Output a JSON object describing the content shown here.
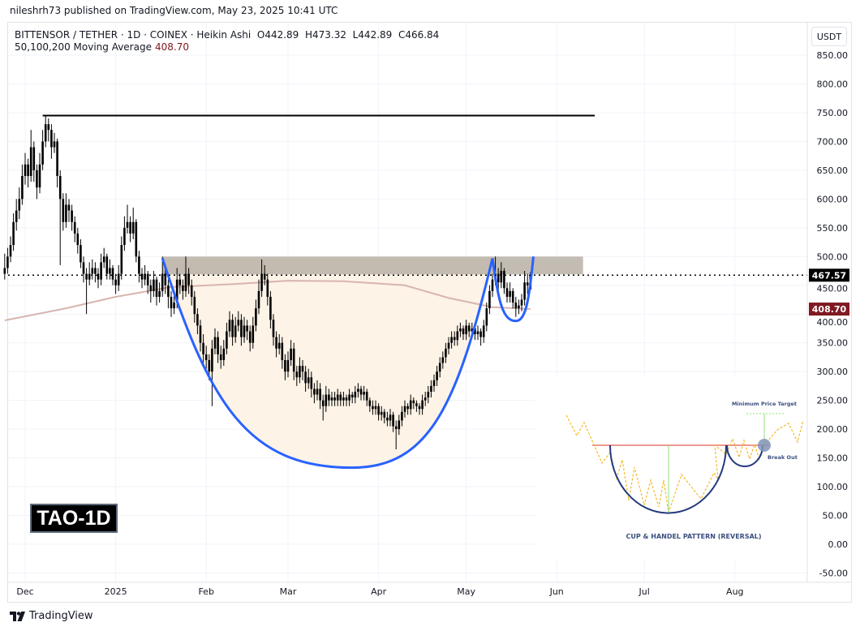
{
  "header": {
    "published": "nileshrh73 published on TradingView.com, May 23, 2025 10:41 UTC",
    "symbol_line": "BITTENSOR / TETHER · 1D · COINEX · Heikin Ashi",
    "ohlc": {
      "open": "O442.89",
      "high": "H473.32",
      "low": "L442.89",
      "close": "C466.84"
    },
    "indicator_label": "50,100,200 Moving Average",
    "indicator_value": "408.70"
  },
  "currency_button": "USDT",
  "watermark_label": "TAO-1D",
  "footer_logo": "TradingView",
  "colors": {
    "candle": "#000000",
    "ma": "#d8b4b0",
    "cup_line": "#2962ff",
    "cup_fill": "#fdf3e7",
    "zone": "#b8b0a6",
    "last_price_badge": "#000000",
    "ma_badge": "#801922"
  },
  "chart_data": {
    "type": "candlestick",
    "title": "",
    "y_axis": {
      "min": -50,
      "max": 850,
      "step": 50,
      "ticks": [
        "850.00",
        "800.00",
        "750.00",
        "700.00",
        "650.00",
        "600.00",
        "550.00",
        "500.00",
        "450.00",
        "400.00",
        "350.00",
        "300.00",
        "250.00",
        "200.00",
        "150.00",
        "100.00",
        "50.00",
        "0.00",
        "-50.00"
      ]
    },
    "x_axis": {
      "ticks": [
        {
          "label": "Dec",
          "date": "2024-12-01"
        },
        {
          "label": "2025",
          "date": "2025-01-01"
        },
        {
          "label": "Feb",
          "date": "2025-02-01"
        },
        {
          "label": "Mar",
          "date": "2025-03-01"
        },
        {
          "label": "Apr",
          "date": "2025-04-01"
        },
        {
          "label": "May",
          "date": "2025-05-01"
        },
        {
          "label": "Jun",
          "date": "2025-06-01"
        },
        {
          "label": "Jul",
          "date": "2025-07-01"
        },
        {
          "label": "Aug",
          "date": "2025-08-01"
        }
      ]
    },
    "grid": true,
    "last_price": "467.57",
    "ma_last": "408.70",
    "candles_ohlc": [
      [
        "2024-11-24",
        470,
        505,
        460,
        480
      ],
      [
        "2024-11-25",
        480,
        515,
        470,
        500
      ],
      [
        "2024-11-26",
        500,
        535,
        490,
        520
      ],
      [
        "2024-11-27",
        520,
        575,
        510,
        560
      ],
      [
        "2024-11-28",
        560,
        600,
        545,
        580
      ],
      [
        "2024-11-29",
        580,
        620,
        565,
        600
      ],
      [
        "2024-11-30",
        600,
        660,
        590,
        640
      ],
      [
        "2024-12-01",
        640,
        680,
        625,
        660
      ],
      [
        "2024-12-02",
        660,
        670,
        620,
        640
      ],
      [
        "2024-12-03",
        640,
        720,
        630,
        690
      ],
      [
        "2024-12-04",
        690,
        700,
        630,
        650
      ],
      [
        "2024-12-05",
        650,
        660,
        600,
        620
      ],
      [
        "2024-12-06",
        620,
        680,
        610,
        660
      ],
      [
        "2024-12-07",
        660,
        720,
        650,
        700
      ],
      [
        "2024-12-08",
        700,
        745,
        690,
        730
      ],
      [
        "2024-12-09",
        730,
        740,
        700,
        720
      ],
      [
        "2024-12-10",
        720,
        730,
        670,
        690
      ],
      [
        "2024-12-11",
        690,
        715,
        680,
        700
      ],
      [
        "2024-12-12",
        700,
        705,
        620,
        640
      ],
      [
        "2024-12-13",
        640,
        650,
        485,
        600
      ],
      [
        "2024-12-14",
        600,
        610,
        545,
        560
      ],
      [
        "2024-12-15",
        560,
        610,
        550,
        590
      ],
      [
        "2024-12-16",
        590,
        600,
        560,
        580
      ],
      [
        "2024-12-17",
        580,
        590,
        545,
        560
      ],
      [
        "2024-12-18",
        560,
        570,
        525,
        540
      ],
      [
        "2024-12-19",
        540,
        550,
        505,
        520
      ],
      [
        "2024-12-20",
        520,
        530,
        480,
        490
      ],
      [
        "2024-12-21",
        490,
        500,
        455,
        470
      ],
      [
        "2024-12-22",
        470,
        480,
        400,
        460
      ],
      [
        "2024-12-23",
        460,
        490,
        450,
        470
      ],
      [
        "2024-12-24",
        470,
        495,
        460,
        480
      ],
      [
        "2024-12-25",
        480,
        490,
        455,
        470
      ],
      [
        "2024-12-26",
        470,
        480,
        445,
        460
      ],
      [
        "2024-12-27",
        460,
        505,
        450,
        490
      ],
      [
        "2024-12-28",
        490,
        515,
        480,
        500
      ],
      [
        "2024-12-29",
        500,
        505,
        460,
        470
      ],
      [
        "2024-12-30",
        470,
        495,
        460,
        480
      ],
      [
        "2024-12-31",
        480,
        485,
        450,
        460
      ],
      [
        "2025-01-01",
        460,
        470,
        435,
        450
      ],
      [
        "2025-01-02",
        450,
        485,
        440,
        470
      ],
      [
        "2025-01-03",
        470,
        535,
        460,
        520
      ],
      [
        "2025-01-04",
        520,
        570,
        510,
        550
      ],
      [
        "2025-01-05",
        550,
        590,
        540,
        560
      ],
      [
        "2025-01-06",
        560,
        570,
        525,
        540
      ],
      [
        "2025-01-07",
        540,
        585,
        530,
        560
      ],
      [
        "2025-01-08",
        560,
        565,
        490,
        500
      ],
      [
        "2025-01-09",
        500,
        510,
        455,
        470
      ],
      [
        "2025-01-10",
        470,
        480,
        445,
        460
      ],
      [
        "2025-01-11",
        460,
        485,
        450,
        470
      ],
      [
        "2025-01-12",
        470,
        475,
        435,
        450
      ],
      [
        "2025-01-13",
        450,
        460,
        420,
        440
      ],
      [
        "2025-01-14",
        440,
        475,
        430,
        460
      ],
      [
        "2025-01-15",
        460,
        465,
        415,
        430
      ],
      [
        "2025-01-16",
        430,
        455,
        420,
        440
      ],
      [
        "2025-01-17",
        440,
        500,
        430,
        470
      ],
      [
        "2025-01-18",
        470,
        480,
        435,
        450
      ],
      [
        "2025-01-19",
        450,
        460,
        410,
        430
      ],
      [
        "2025-01-20",
        430,
        440,
        395,
        410
      ],
      [
        "2025-01-21",
        410,
        435,
        400,
        420
      ],
      [
        "2025-01-22",
        420,
        480,
        410,
        460
      ],
      [
        "2025-01-23",
        460,
        470,
        435,
        450
      ],
      [
        "2025-01-24",
        450,
        460,
        425,
        440
      ],
      [
        "2025-01-25",
        440,
        500,
        430,
        470
      ],
      [
        "2025-01-26",
        470,
        480,
        435,
        450
      ],
      [
        "2025-01-27",
        450,
        460,
        415,
        430
      ],
      [
        "2025-01-28",
        430,
        440,
        385,
        400
      ],
      [
        "2025-01-29",
        400,
        410,
        365,
        380
      ],
      [
        "2025-01-30",
        380,
        390,
        335,
        350
      ],
      [
        "2025-01-31",
        350,
        365,
        315,
        330
      ],
      [
        "2025-02-01",
        330,
        345,
        305,
        320
      ],
      [
        "2025-02-02",
        320,
        330,
        285,
        300
      ],
      [
        "2025-02-03",
        300,
        355,
        240,
        340
      ],
      [
        "2025-02-04",
        340,
        375,
        330,
        360
      ],
      [
        "2025-02-05",
        360,
        370,
        315,
        330
      ],
      [
        "2025-02-06",
        330,
        345,
        305,
        320
      ],
      [
        "2025-02-07",
        320,
        355,
        310,
        340
      ],
      [
        "2025-02-08",
        340,
        385,
        330,
        370
      ],
      [
        "2025-02-09",
        370,
        405,
        360,
        390
      ],
      [
        "2025-02-10",
        390,
        400,
        345,
        360
      ],
      [
        "2025-02-11",
        360,
        395,
        350,
        380
      ],
      [
        "2025-02-12",
        380,
        405,
        370,
        390
      ],
      [
        "2025-02-13",
        390,
        400,
        345,
        360
      ],
      [
        "2025-02-14",
        360,
        395,
        350,
        380
      ],
      [
        "2025-02-15",
        380,
        390,
        355,
        370
      ],
      [
        "2025-02-16",
        370,
        380,
        335,
        350
      ],
      [
        "2025-02-17",
        350,
        395,
        340,
        380
      ],
      [
        "2025-02-18",
        380,
        425,
        370,
        410
      ],
      [
        "2025-02-19",
        410,
        460,
        400,
        440
      ],
      [
        "2025-02-20",
        440,
        495,
        430,
        470
      ],
      [
        "2025-02-21",
        470,
        485,
        450,
        460
      ],
      [
        "2025-02-22",
        460,
        470,
        415,
        430
      ],
      [
        "2025-02-23",
        430,
        440,
        375,
        390
      ],
      [
        "2025-02-24",
        390,
        400,
        345,
        360
      ],
      [
        "2025-02-25",
        360,
        370,
        325,
        340
      ],
      [
        "2025-02-26",
        340,
        365,
        330,
        350
      ],
      [
        "2025-02-27",
        350,
        360,
        305,
        320
      ],
      [
        "2025-02-28",
        320,
        330,
        285,
        300
      ],
      [
        "2025-03-01",
        300,
        335,
        290,
        320
      ],
      [
        "2025-03-02",
        320,
        355,
        310,
        340
      ],
      [
        "2025-03-03",
        340,
        350,
        285,
        300
      ],
      [
        "2025-03-04",
        300,
        310,
        275,
        290
      ],
      [
        "2025-03-05",
        290,
        325,
        280,
        310
      ],
      [
        "2025-03-06",
        310,
        320,
        285,
        300
      ],
      [
        "2025-03-07",
        300,
        310,
        265,
        280
      ],
      [
        "2025-03-08",
        280,
        305,
        270,
        290
      ],
      [
        "2025-03-09",
        290,
        300,
        255,
        270
      ],
      [
        "2025-03-10",
        270,
        280,
        245,
        260
      ],
      [
        "2025-03-11",
        260,
        285,
        250,
        270
      ],
      [
        "2025-03-12",
        270,
        280,
        235,
        250
      ],
      [
        "2025-03-13",
        250,
        260,
        215,
        240
      ],
      [
        "2025-03-14",
        240,
        275,
        230,
        260
      ],
      [
        "2025-03-15",
        260,
        270,
        240,
        250
      ],
      [
        "2025-03-16",
        250,
        265,
        240,
        255
      ],
      [
        "2025-03-17",
        255,
        265,
        240,
        250
      ],
      [
        "2025-03-18",
        250,
        270,
        240,
        260
      ],
      [
        "2025-03-19",
        260,
        265,
        240,
        250
      ],
      [
        "2025-03-20",
        250,
        265,
        240,
        255
      ],
      [
        "2025-03-21",
        255,
        260,
        240,
        250
      ],
      [
        "2025-03-22",
        250,
        270,
        240,
        260
      ],
      [
        "2025-03-23",
        260,
        265,
        245,
        255
      ],
      [
        "2025-03-24",
        255,
        275,
        245,
        265
      ],
      [
        "2025-03-25",
        265,
        280,
        255,
        270
      ],
      [
        "2025-03-26",
        270,
        275,
        250,
        260
      ],
      [
        "2025-03-27",
        260,
        275,
        250,
        265
      ],
      [
        "2025-03-28",
        265,
        270,
        240,
        250
      ],
      [
        "2025-03-29",
        250,
        255,
        230,
        240
      ],
      [
        "2025-03-30",
        240,
        250,
        225,
        235
      ],
      [
        "2025-03-31",
        235,
        250,
        225,
        240
      ],
      [
        "2025-04-01",
        240,
        245,
        215,
        225
      ],
      [
        "2025-04-02",
        225,
        240,
        215,
        230
      ],
      [
        "2025-04-03",
        230,
        235,
        210,
        220
      ],
      [
        "2025-04-04",
        220,
        230,
        205,
        215
      ],
      [
        "2025-04-05",
        215,
        235,
        205,
        225
      ],
      [
        "2025-04-06",
        225,
        230,
        195,
        205
      ],
      [
        "2025-04-07",
        205,
        215,
        165,
        200
      ],
      [
        "2025-04-08",
        200,
        225,
        190,
        215
      ],
      [
        "2025-04-09",
        215,
        240,
        205,
        230
      ],
      [
        "2025-04-10",
        230,
        250,
        220,
        240
      ],
      [
        "2025-04-11",
        240,
        245,
        225,
        235
      ],
      [
        "2025-04-12",
        235,
        260,
        225,
        250
      ],
      [
        "2025-04-13",
        250,
        255,
        235,
        245
      ],
      [
        "2025-04-14",
        245,
        250,
        230,
        240
      ],
      [
        "2025-04-15",
        240,
        245,
        225,
        235
      ],
      [
        "2025-04-16",
        235,
        260,
        225,
        250
      ],
      [
        "2025-04-17",
        250,
        265,
        240,
        255
      ],
      [
        "2025-04-18",
        255,
        275,
        245,
        265
      ],
      [
        "2025-04-19",
        265,
        285,
        255,
        275
      ],
      [
        "2025-04-20",
        275,
        295,
        265,
        285
      ],
      [
        "2025-04-21",
        285,
        310,
        275,
        300
      ],
      [
        "2025-04-22",
        300,
        325,
        290,
        315
      ],
      [
        "2025-04-23",
        315,
        335,
        305,
        325
      ],
      [
        "2025-04-24",
        325,
        350,
        315,
        340
      ],
      [
        "2025-04-25",
        340,
        360,
        330,
        350
      ],
      [
        "2025-04-26",
        350,
        370,
        340,
        360
      ],
      [
        "2025-04-27",
        360,
        370,
        345,
        355
      ],
      [
        "2025-04-28",
        355,
        380,
        345,
        370
      ],
      [
        "2025-04-29",
        370,
        385,
        360,
        375
      ],
      [
        "2025-04-30",
        375,
        380,
        355,
        365
      ],
      [
        "2025-05-01",
        365,
        390,
        355,
        380
      ],
      [
        "2025-05-02",
        380,
        385,
        360,
        370
      ],
      [
        "2025-05-03",
        370,
        385,
        360,
        375
      ],
      [
        "2025-05-04",
        375,
        380,
        355,
        365
      ],
      [
        "2025-05-05",
        365,
        380,
        355,
        370
      ],
      [
        "2025-05-06",
        370,
        375,
        345,
        360
      ],
      [
        "2025-05-07",
        360,
        390,
        350,
        380
      ],
      [
        "2025-05-08",
        380,
        420,
        370,
        410
      ],
      [
        "2025-05-09",
        410,
        450,
        400,
        440
      ],
      [
        "2025-05-10",
        440,
        470,
        430,
        460
      ],
      [
        "2025-05-11",
        460,
        500,
        450,
        470
      ],
      [
        "2025-05-12",
        470,
        480,
        440,
        455
      ],
      [
        "2025-05-13",
        455,
        490,
        445,
        475
      ],
      [
        "2025-05-14",
        475,
        480,
        435,
        445
      ],
      [
        "2025-05-15",
        445,
        455,
        420,
        430
      ],
      [
        "2025-05-16",
        430,
        455,
        420,
        440
      ],
      [
        "2025-05-17",
        440,
        445,
        410,
        420
      ],
      [
        "2025-05-18",
        420,
        430,
        395,
        410
      ],
      [
        "2025-05-19",
        410,
        425,
        400,
        415
      ],
      [
        "2025-05-20",
        415,
        435,
        405,
        425
      ],
      [
        "2025-05-21",
        425,
        475,
        415,
        455
      ],
      [
        "2025-05-22",
        455,
        470,
        435,
        450
      ],
      [
        "2025-05-23",
        442.89,
        473.32,
        442.89,
        466.84
      ]
    ],
    "moving_average_200": [
      [
        "2024-11-24",
        389
      ],
      [
        "2024-12-15",
        410
      ],
      [
        "2025-01-01",
        430
      ],
      [
        "2025-01-20",
        447
      ],
      [
        "2025-02-10",
        452
      ],
      [
        "2025-03-01",
        458
      ],
      [
        "2025-03-20",
        457
      ],
      [
        "2025-04-10",
        450
      ],
      [
        "2025-04-25",
        428
      ],
      [
        "2025-05-10",
        412
      ],
      [
        "2025-05-23",
        408.7
      ]
    ],
    "drawings": {
      "resistance_line": {
        "price": 745,
        "from": "2024-12-07",
        "to": "2025-06-14"
      },
      "resistance_zone": {
        "low": 469,
        "high": 500,
        "from": "2025-01-17",
        "to": "2025-06-10"
      },
      "cup": {
        "start": [
          "2025-01-17",
          497
        ],
        "bottom": [
          "2025-03-23",
          133
        ],
        "end": [
          "2025-05-10",
          497
        ]
      },
      "handle": {
        "start": [
          "2025-05-10",
          497
        ],
        "bottom": [
          "2025-05-18",
          388
        ],
        "end": [
          "2025-05-24",
          500
        ]
      }
    }
  },
  "inset": {
    "target_label": "Minimum Price Target",
    "breakout_label": "Break Out",
    "caption": "CUP & HANDEL PATTERN (REVERSAL)"
  }
}
